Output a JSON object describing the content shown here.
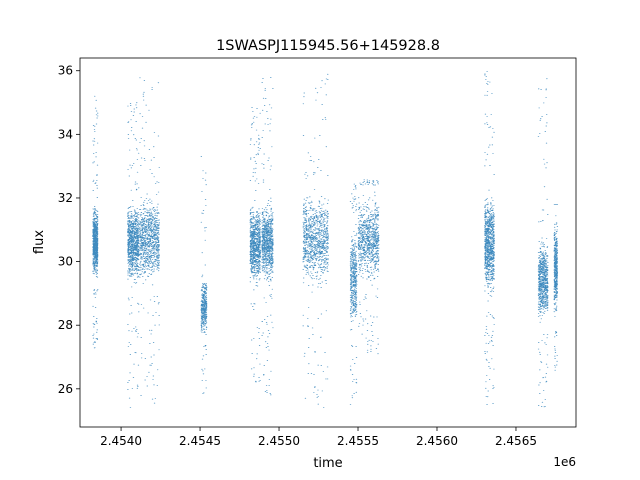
{
  "chart_data": {
    "type": "scatter",
    "title": "1SWASPJ115945.56+145928.8",
    "xlabel": "time",
    "ylabel": "flux",
    "x_offset_label": "1e6",
    "xlim": [
      2453740,
      2456880
    ],
    "ylim": [
      24.8,
      36.4
    ],
    "x_ticks": [
      2454000,
      2454500,
      2455000,
      2455500,
      2456000,
      2456500
    ],
    "x_tick_labels": [
      "2.4540",
      "2.4545",
      "2.4550",
      "2.4555",
      "2.4560",
      "2.4565"
    ],
    "y_ticks": [
      26,
      28,
      30,
      32,
      34,
      36
    ],
    "y_tick_labels": [
      "26",
      "28",
      "30",
      "32",
      "34",
      "36"
    ],
    "grid": false,
    "point_color": "#1f77b4",
    "clusters": [
      {
        "x_start": 2453820,
        "x_end": 2453850,
        "y_low": 29.2,
        "y_high": 32.0,
        "y_min_outlier": 27.2,
        "y_max_outlier": 35.2,
        "density": 0.9
      },
      {
        "x_start": 2454040,
        "x_end": 2454110,
        "y_low": 29.0,
        "y_high": 32.2,
        "y_min_outlier": 25.4,
        "y_max_outlier": 35.0,
        "density": 1.0
      },
      {
        "x_start": 2454115,
        "x_end": 2454240,
        "y_low": 29.0,
        "y_high": 32.4,
        "y_min_outlier": 25.4,
        "y_max_outlier": 35.8,
        "density": 1.0
      },
      {
        "x_start": 2454505,
        "x_end": 2454540,
        "y_low": 27.4,
        "y_high": 29.8,
        "y_min_outlier": 25.6,
        "y_max_outlier": 33.5,
        "density": 0.4
      },
      {
        "x_start": 2454815,
        "x_end": 2454880,
        "y_low": 28.9,
        "y_high": 32.2,
        "y_min_outlier": 26.2,
        "y_max_outlier": 34.9,
        "density": 0.9
      },
      {
        "x_start": 2454890,
        "x_end": 2454960,
        "y_low": 29.0,
        "y_high": 32.2,
        "y_min_outlier": 25.6,
        "y_max_outlier": 35.8,
        "density": 0.9
      },
      {
        "x_start": 2455150,
        "x_end": 2455310,
        "y_low": 28.8,
        "y_high": 32.6,
        "y_min_outlier": 25.4,
        "y_max_outlier": 35.9,
        "density": 1.0
      },
      {
        "x_start": 2455450,
        "x_end": 2455490,
        "y_low": 27.5,
        "y_high": 31.5,
        "y_min_outlier": 25.5,
        "y_max_outlier": 32.5,
        "density": 0.5
      },
      {
        "x_start": 2455500,
        "x_end": 2455630,
        "y_low": 29.0,
        "y_high": 32.4,
        "y_min_outlier": 27.0,
        "y_max_outlier": 32.6,
        "density": 0.9
      },
      {
        "x_start": 2456300,
        "x_end": 2456360,
        "y_low": 28.5,
        "y_high": 32.6,
        "y_min_outlier": 25.5,
        "y_max_outlier": 36.0,
        "density": 1.0
      },
      {
        "x_start": 2456640,
        "x_end": 2456700,
        "y_low": 27.8,
        "y_high": 31.0,
        "y_min_outlier": 25.4,
        "y_max_outlier": 35.8,
        "density": 0.8
      },
      {
        "x_start": 2456740,
        "x_end": 2456760,
        "y_low": 27.8,
        "y_high": 31.8,
        "y_min_outlier": 26.5,
        "y_max_outlier": 31.8,
        "density": 0.5
      }
    ]
  }
}
